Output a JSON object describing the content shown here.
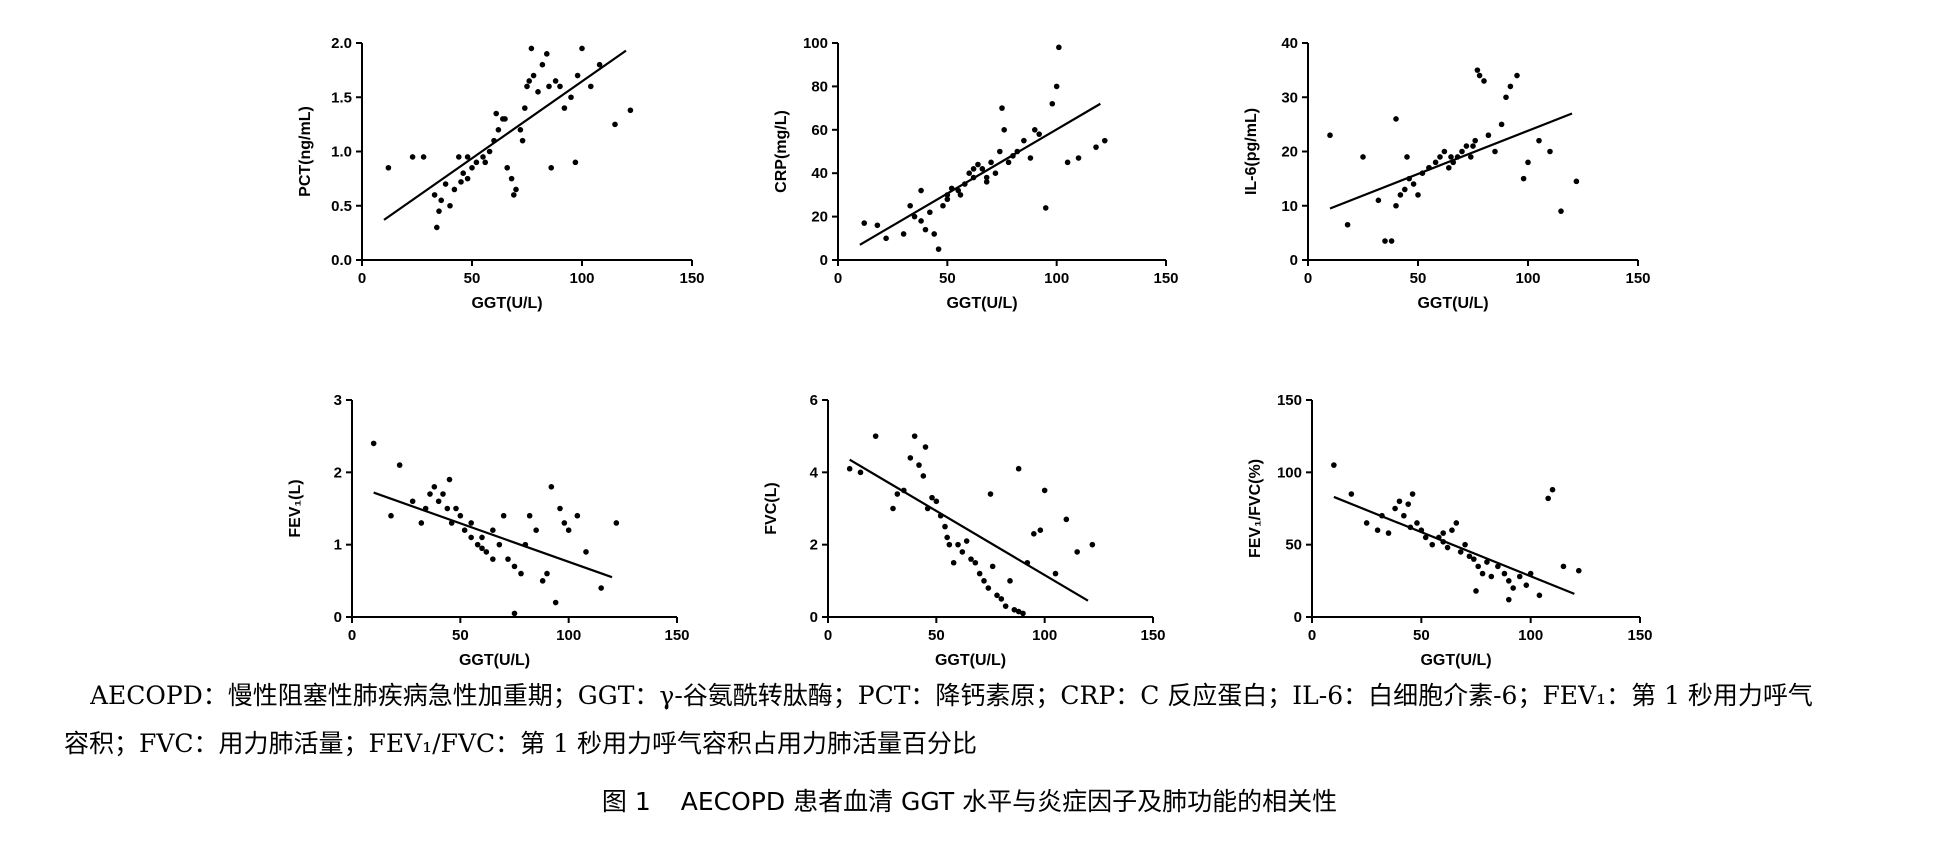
{
  "chart_data": [
    {
      "type": "scatter",
      "id": "pct",
      "xlabel": "GGT(U/L)",
      "ylabel": "PCT(ng/mL)",
      "xlim": [
        0,
        150
      ],
      "ylim": [
        0,
        2.0
      ],
      "xticks": [
        "0",
        "50",
        "100",
        "150"
      ],
      "yticks": [
        "0.0",
        "0.5",
        "1.0",
        "1.5",
        "2.0"
      ],
      "x": [
        12,
        23,
        28,
        33,
        34,
        35,
        36,
        38,
        40,
        42,
        45,
        46,
        48,
        50,
        52,
        55,
        58,
        60,
        62,
        64,
        66,
        68,
        70,
        72,
        74,
        75,
        76,
        78,
        80,
        82,
        84,
        85,
        88,
        90,
        92,
        95,
        98,
        100,
        104,
        108,
        115,
        122,
        44,
        48,
        56,
        61,
        65,
        69,
        73,
        77,
        86,
        97
      ],
      "y": [
        0.85,
        0.95,
        0.95,
        0.6,
        0.3,
        0.45,
        0.55,
        0.7,
        0.5,
        0.65,
        0.72,
        0.8,
        0.75,
        0.85,
        0.9,
        0.95,
        1.0,
        1.1,
        1.2,
        1.3,
        0.85,
        0.75,
        0.65,
        1.2,
        1.4,
        1.6,
        1.65,
        1.7,
        1.55,
        1.8,
        1.9,
        1.6,
        1.65,
        1.6,
        1.4,
        1.5,
        1.7,
        1.95,
        1.6,
        1.8,
        1.25,
        1.38,
        0.95,
        0.95,
        0.9,
        1.35,
        1.3,
        0.6,
        1.1,
        1.95,
        0.85,
        0.9
      ],
      "fit": {
        "x": [
          10,
          120
        ],
        "y": [
          0.37,
          1.93
        ]
      }
    },
    {
      "type": "scatter",
      "id": "crp",
      "xlabel": "GGT(U/L)",
      "ylabel": "CRP(mg/L)",
      "xlim": [
        0,
        150
      ],
      "ylim": [
        0,
        100
      ],
      "xticks": [
        "0",
        "50",
        "100",
        "150"
      ],
      "yticks": [
        "0",
        "20",
        "40",
        "60",
        "80",
        "100"
      ],
      "x": [
        12,
        18,
        22,
        30,
        33,
        35,
        38,
        40,
        42,
        44,
        46,
        48,
        50,
        52,
        55,
        58,
        60,
        62,
        64,
        66,
        68,
        70,
        72,
        74,
        75,
        78,
        80,
        82,
        85,
        88,
        90,
        92,
        95,
        98,
        100,
        101,
        105,
        110,
        118,
        122,
        38,
        50,
        56,
        62,
        68,
        76
      ],
      "y": [
        17,
        16,
        10,
        12,
        25,
        20,
        18,
        14,
        22,
        12,
        5,
        25,
        30,
        33,
        32,
        35,
        40,
        38,
        44,
        42,
        36,
        45,
        40,
        50,
        70,
        45,
        48,
        50,
        55,
        47,
        60,
        58,
        24,
        72,
        80,
        98,
        45,
        47,
        52,
        55,
        32,
        28,
        30,
        42,
        38,
        60
      ],
      "fit": {
        "x": [
          10,
          120
        ],
        "y": [
          7,
          72
        ]
      }
    },
    {
      "type": "scatter",
      "id": "il6",
      "xlabel": "GGT(U/L)",
      "ylabel": "IL-6(pg/mL)",
      "xlim": [
        0,
        150
      ],
      "ylim": [
        0,
        40
      ],
      "xticks": [
        "0",
        "50",
        "100",
        "150"
      ],
      "yticks": [
        "0",
        "10",
        "20",
        "30",
        "40"
      ],
      "x": [
        10,
        18,
        25,
        32,
        35,
        38,
        40,
        42,
        44,
        46,
        48,
        50,
        52,
        55,
        58,
        60,
        62,
        64,
        66,
        68,
        70,
        72,
        74,
        76,
        78,
        80,
        82,
        85,
        88,
        90,
        92,
        95,
        98,
        100,
        105,
        110,
        115,
        122,
        40,
        45,
        55,
        65,
        75,
        77
      ],
      "y": [
        23,
        6.5,
        19,
        11,
        3.5,
        3.5,
        10,
        12,
        13,
        15,
        14,
        12,
        16,
        17,
        18,
        19,
        20,
        17,
        18,
        19,
        20,
        21,
        19,
        22,
        34,
        33,
        23,
        20,
        25,
        30,
        32,
        34,
        15,
        18,
        22,
        20,
        9,
        14.5,
        26,
        19,
        17,
        19,
        21,
        35
      ],
      "fit": {
        "x": [
          10,
          120
        ],
        "y": [
          9.5,
          27
        ]
      }
    },
    {
      "type": "scatter",
      "id": "fev1",
      "xlabel": "GGT(U/L)",
      "ylabel": "FEV₁(L)",
      "xlim": [
        0,
        150
      ],
      "ylim": [
        0,
        3
      ],
      "xticks": [
        "0",
        "50",
        "100",
        "150"
      ],
      "yticks": [
        "0",
        "1",
        "2",
        "3"
      ],
      "x": [
        10,
        18,
        22,
        28,
        32,
        34,
        36,
        38,
        40,
        42,
        44,
        46,
        48,
        50,
        52,
        55,
        58,
        60,
        62,
        65,
        68,
        70,
        72,
        75,
        78,
        80,
        82,
        85,
        88,
        90,
        92,
        94,
        96,
        98,
        100,
        104,
        108,
        115,
        122,
        45,
        55,
        65,
        75,
        60
      ],
      "y": [
        2.4,
        1.4,
        2.1,
        1.6,
        1.3,
        1.5,
        1.7,
        1.8,
        1.6,
        1.7,
        1.5,
        1.3,
        1.5,
        1.4,
        1.2,
        1.3,
        1.0,
        1.1,
        0.9,
        1.2,
        1.0,
        1.4,
        0.8,
        0.7,
        0.6,
        1.0,
        1.4,
        1.2,
        0.5,
        0.6,
        1.8,
        0.2,
        1.5,
        1.3,
        1.2,
        1.4,
        0.9,
        0.4,
        1.3,
        1.9,
        1.1,
        0.8,
        0.05,
        0.95
      ],
      "fit": {
        "x": [
          10,
          120
        ],
        "y": [
          1.72,
          0.55
        ]
      }
    },
    {
      "type": "scatter",
      "id": "fvc",
      "xlabel": "GGT(U/L)",
      "ylabel": "FVC(L)",
      "xlim": [
        0,
        150
      ],
      "ylim": [
        0,
        6
      ],
      "xticks": [
        "0",
        "50",
        "100",
        "150"
      ],
      "yticks": [
        "0",
        "2",
        "4",
        "6"
      ],
      "x": [
        10,
        15,
        22,
        30,
        32,
        35,
        38,
        40,
        42,
        44,
        46,
        48,
        50,
        52,
        54,
        56,
        58,
        60,
        62,
        64,
        66,
        68,
        70,
        72,
        74,
        76,
        78,
        80,
        82,
        84,
        86,
        88,
        90,
        92,
        95,
        98,
        100,
        105,
        110,
        115,
        122,
        45,
        55,
        75,
        88
      ],
      "y": [
        4.1,
        4.0,
        5.0,
        3.0,
        3.4,
        3.5,
        4.4,
        5.0,
        4.2,
        3.9,
        3.0,
        3.3,
        3.2,
        2.8,
        2.5,
        2.0,
        1.5,
        2.0,
        1.8,
        2.1,
        1.6,
        1.5,
        1.2,
        1.0,
        0.8,
        1.4,
        0.6,
        0.5,
        0.3,
        1.0,
        0.2,
        4.1,
        0.1,
        1.5,
        2.3,
        2.4,
        3.5,
        1.2,
        2.7,
        1.8,
        2.0,
        4.7,
        2.2,
        3.4,
        0.15
      ],
      "fit": {
        "x": [
          10,
          120
        ],
        "y": [
          4.35,
          0.45
        ]
      }
    },
    {
      "type": "scatter",
      "id": "fev1fvc",
      "xlabel": "GGT(U/L)",
      "ylabel": "FEV₁/FVC(%)",
      "xlim": [
        0,
        150
      ],
      "ylim": [
        0,
        150
      ],
      "xticks": [
        "0",
        "50",
        "100",
        "150"
      ],
      "yticks": [
        "0",
        "50",
        "100",
        "150"
      ],
      "x": [
        10,
        18,
        25,
        30,
        32,
        35,
        38,
        40,
        42,
        44,
        46,
        48,
        50,
        52,
        55,
        58,
        60,
        62,
        64,
        66,
        68,
        70,
        72,
        74,
        76,
        78,
        80,
        82,
        85,
        88,
        90,
        92,
        95,
        98,
        100,
        104,
        108,
        110,
        115,
        122,
        45,
        60,
        75,
        90
      ],
      "y": [
        105,
        85,
        65,
        60,
        70,
        58,
        75,
        80,
        70,
        78,
        85,
        65,
        60,
        55,
        50,
        55,
        52,
        48,
        60,
        65,
        45,
        50,
        42,
        40,
        35,
        30,
        38,
        28,
        35,
        30,
        25,
        20,
        28,
        22,
        30,
        15,
        82,
        88,
        35,
        32,
        62,
        58,
        18,
        12
      ],
      "fit": {
        "x": [
          10,
          120
        ],
        "y": [
          83,
          16
        ]
      }
    }
  ],
  "notes": {
    "line1": "AECOPD：慢性阻塞性肺疾病急性加重期；GGT：γ-谷氨酰转肽酶；PCT：降钙素原；CRP：C 反应蛋白；IL-6：白细胞介素-6；FEV₁：第 1 秒用力呼气",
    "line2": "容积；FVC：用力肺活量；FEV₁/FVC：第 1 秒用力呼气容积占用力肺活量百分比"
  },
  "caption": {
    "label": "图 1",
    "text": "AECOPD 患者血清 GGT 水平与炎症因子及肺功能的相关性"
  }
}
